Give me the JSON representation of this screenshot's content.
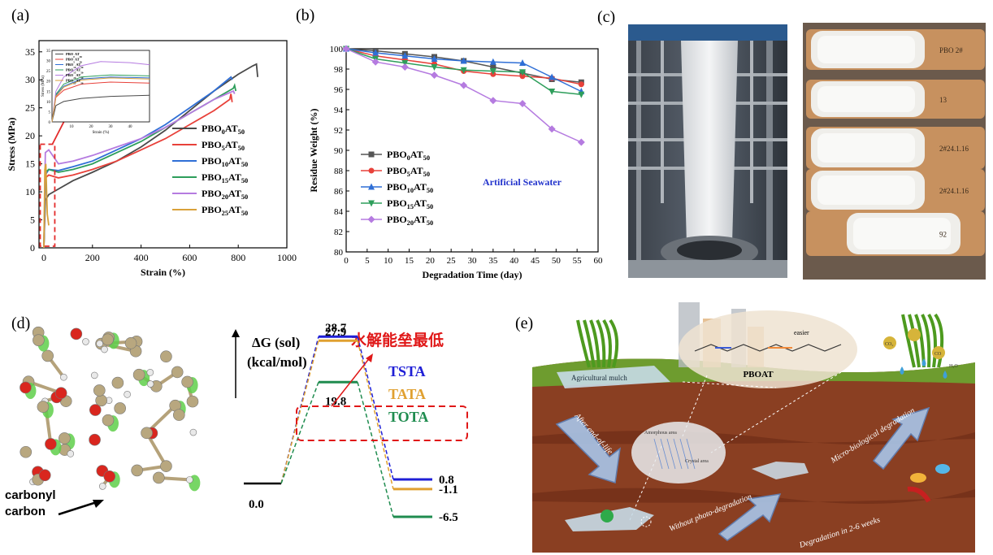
{
  "panels": {
    "a": {
      "label": "(a)"
    },
    "b": {
      "label": "(b)"
    },
    "c": {
      "label": "(c)"
    },
    "d": {
      "label": "(d)"
    },
    "e": {
      "label": "(e)"
    }
  },
  "chart_data": [
    {
      "id": "a",
      "type": "line",
      "xlabel": "Strain (%)",
      "ylabel": "Stress (MPa)",
      "xlim": [
        -20,
        1000
      ],
      "ylim": [
        0,
        37
      ],
      "xticks": [
        0,
        200,
        400,
        600,
        800,
        1000
      ],
      "yticks": [
        0,
        5,
        10,
        15,
        20,
        25,
        30,
        35
      ],
      "legend_position": "right",
      "series": [
        {
          "name": "PBO0AT50",
          "base": "PBO",
          "sub1": "0",
          "mid": "AT",
          "sub2": "50",
          "color": "#4a4a4a",
          "points": [
            [
              0,
              0
            ],
            [
              6,
              8.5
            ],
            [
              20,
              9.5
            ],
            [
              60,
              10.5
            ],
            [
              120,
              12
            ],
            [
              200,
              13.5
            ],
            [
              300,
              15.5
            ],
            [
              400,
              18
            ],
            [
              500,
              21
            ],
            [
              600,
              24.5
            ],
            [
              700,
              28
            ],
            [
              800,
              31
            ],
            [
              860,
              32.5
            ],
            [
              875,
              32.8
            ],
            [
              880,
              30.5
            ]
          ]
        },
        {
          "name": "PBO5AT50",
          "base": "PBO",
          "sub1": "5",
          "mid": "AT",
          "sub2": "50",
          "color": "#e8413a",
          "points": [
            [
              0,
              0
            ],
            [
              6,
              12.5
            ],
            [
              20,
              13
            ],
            [
              60,
              12.5
            ],
            [
              120,
              13
            ],
            [
              200,
              14
            ],
            [
              300,
              15.5
            ],
            [
              400,
              17.5
            ],
            [
              500,
              19.5
            ],
            [
              600,
              22
            ],
            [
              700,
              24.5
            ],
            [
              765,
              26.5
            ],
            [
              770,
              27.5
            ],
            [
              775,
              26
            ]
          ]
        },
        {
          "name": "PBO10AT50",
          "base": "PBO",
          "sub1": "10",
          "mid": "AT",
          "sub2": "50",
          "color": "#2f6fd6",
          "points": [
            [
              0,
              0
            ],
            [
              6,
              13
            ],
            [
              20,
              14
            ],
            [
              60,
              13.8
            ],
            [
              120,
              14.5
            ],
            [
              200,
              15.5
            ],
            [
              300,
              17.5
            ],
            [
              400,
              19.5
            ],
            [
              500,
              22
            ],
            [
              600,
              25
            ],
            [
              700,
              28
            ],
            [
              770,
              30.5
            ],
            [
              775,
              30
            ]
          ]
        },
        {
          "name": "PBO15AT50",
          "base": "PBO",
          "sub1": "15",
          "mid": "AT",
          "sub2": "50",
          "color": "#2e9e5b",
          "points": [
            [
              0,
              0
            ],
            [
              6,
              13.5
            ],
            [
              20,
              14
            ],
            [
              60,
              13.5
            ],
            [
              120,
              14
            ],
            [
              200,
              15
            ],
            [
              300,
              17
            ],
            [
              400,
              19
            ],
            [
              500,
              21.5
            ],
            [
              600,
              24
            ],
            [
              700,
              26.5
            ],
            [
              780,
              28.5
            ],
            [
              785,
              29
            ],
            [
              790,
              28
            ]
          ]
        },
        {
          "name": "PBO20AT50",
          "base": "PBO",
          "sub1": "20",
          "mid": "AT",
          "sub2": "50",
          "color": "#b57be0",
          "points": [
            [
              0,
              0
            ],
            [
              6,
              17
            ],
            [
              20,
              17.5
            ],
            [
              60,
              15
            ],
            [
              120,
              15.5
            ],
            [
              200,
              16.5
            ],
            [
              300,
              18
            ],
            [
              400,
              19.5
            ],
            [
              500,
              21.5
            ],
            [
              600,
              24
            ],
            [
              700,
              26.5
            ],
            [
              780,
              28
            ],
            [
              785,
              27.5
            ]
          ]
        },
        {
          "name": "PBO25AT50",
          "base": "PBO",
          "sub1": "25",
          "mid": "AT",
          "sub2": "50",
          "color": "#d9a13a",
          "points": [
            [
              0,
              0
            ],
            [
              4,
              14
            ],
            [
              8,
              15
            ],
            [
              14,
              6
            ],
            [
              20,
              4
            ]
          ]
        }
      ],
      "inset": {
        "xlabel": "Strain (%)",
        "ylabel": "Stress (MPa)",
        "xlim": [
          0,
          50
        ],
        "ylim": [
          0,
          35
        ],
        "xticks": [
          10,
          20,
          30,
          40
        ],
        "yticks": [
          0,
          5,
          10,
          15,
          20,
          25,
          30,
          35
        ],
        "series": [
          {
            "name": "PBO0AT50",
            "color": "#4a4a4a",
            "points": [
              [
                0,
                0
              ],
              [
                2,
                8
              ],
              [
                6,
                10
              ],
              [
                15,
                11.5
              ],
              [
                30,
                12.5
              ],
              [
                50,
                13
              ]
            ]
          },
          {
            "name": "PBO5AT50",
            "color": "#e8413a",
            "points": [
              [
                0,
                0
              ],
              [
                2,
                12
              ],
              [
                6,
                15.5
              ],
              [
                15,
                18.5
              ],
              [
                30,
                19.5
              ],
              [
                50,
                19
              ]
            ]
          },
          {
            "name": "PBO10AT50",
            "color": "#2f6fd6",
            "points": [
              [
                0,
                0
              ],
              [
                2,
                13
              ],
              [
                6,
                17.5
              ],
              [
                15,
                21
              ],
              [
                30,
                22
              ],
              [
                50,
                21.5
              ]
            ]
          },
          {
            "name": "PBO15AT50",
            "color": "#2e9e5b",
            "points": [
              [
                0,
                0
              ],
              [
                2,
                13.5
              ],
              [
                6,
                18.5
              ],
              [
                15,
                22
              ],
              [
                30,
                23
              ],
              [
                50,
                22.5
              ]
            ]
          },
          {
            "name": "PBO20AT50",
            "color": "#b57be0",
            "points": [
              [
                0,
                0
              ],
              [
                2,
                15
              ],
              [
                6,
                22
              ],
              [
                15,
                27.5
              ],
              [
                25,
                29.5
              ],
              [
                40,
                29
              ],
              [
                50,
                28
              ]
            ]
          },
          {
            "name": "PBO25AT50",
            "color": "#d9a13a",
            "points": [
              [
                0,
                0
              ],
              [
                2,
                12.5
              ],
              [
                6,
                17
              ],
              [
                15,
                20.5
              ],
              [
                30,
                21.5
              ],
              [
                50,
                21
              ]
            ]
          }
        ]
      }
    },
    {
      "id": "b",
      "type": "line",
      "xlabel": "Degradation Time (day)",
      "ylabel": "Residue Weight (%)",
      "xlim": [
        0,
        60
      ],
      "ylim": [
        80,
        100
      ],
      "xticks": [
        0,
        5,
        10,
        15,
        20,
        25,
        30,
        35,
        40,
        45,
        50,
        55,
        60
      ],
      "yticks": [
        80,
        82,
        84,
        86,
        88,
        90,
        92,
        94,
        96,
        98,
        100
      ],
      "annotation": "Artificial Seawater",
      "legend_position": "left",
      "x": [
        0,
        7,
        14,
        21,
        28,
        35,
        42,
        49,
        56
      ],
      "series": [
        {
          "name": "PBO0AT50",
          "base": "PBO",
          "sub1": "0",
          "mid": "AT",
          "sub2": "50",
          "color": "#555555",
          "marker": "square",
          "values": [
            100,
            99.8,
            99.5,
            99.2,
            98.8,
            98.2,
            97.6,
            97.0,
            96.7
          ]
        },
        {
          "name": "PBO5AT50",
          "base": "PBO",
          "sub1": "5",
          "mid": "AT",
          "sub2": "50",
          "color": "#e8413a",
          "marker": "circle",
          "values": [
            100,
            99.3,
            98.9,
            98.5,
            97.8,
            97.5,
            97.3,
            97.1,
            96.5
          ]
        },
        {
          "name": "PBO10AT50",
          "base": "PBO",
          "sub1": "10",
          "mid": "AT",
          "sub2": "50",
          "color": "#2f6fd6",
          "marker": "triangle",
          "values": [
            100,
            99.6,
            99.3,
            99.0,
            98.8,
            98.7,
            98.6,
            97.2,
            95.8
          ]
        },
        {
          "name": "PBO15AT50",
          "base": "PBO",
          "sub1": "15",
          "mid": "AT",
          "sub2": "50",
          "color": "#2e9e5b",
          "marker": "triangle-down",
          "values": [
            100,
            99.0,
            98.6,
            98.2,
            97.9,
            97.8,
            97.7,
            95.8,
            95.5
          ]
        },
        {
          "name": "PBO20AT50",
          "base": "PBO",
          "sub1": "20",
          "mid": "AT",
          "sub2": "50",
          "color": "#b57be0",
          "marker": "diamond",
          "values": [
            100,
            98.7,
            98.2,
            97.4,
            96.4,
            94.9,
            94.6,
            92.1,
            90.8
          ]
        }
      ]
    }
  ],
  "energy_diagram": {
    "axis_label_line1": "ΔG (sol)",
    "axis_label_line2": "(kcal/mol)",
    "annotation": "水解能垒最低",
    "start_value": "0.0",
    "levels": [
      {
        "name": "TSTA",
        "ts": "28.7",
        "final": "0.8",
        "color": "#1f1fd6"
      },
      {
        "name": "TATA",
        "ts": "27.9",
        "final": "-1.1",
        "color": "#e0a030"
      },
      {
        "name": "TOTA",
        "ts": "19.8",
        "final": "-6.5",
        "color": "#1f8c4f"
      }
    ]
  },
  "molecule": {
    "label_line1": "carbonyl",
    "label_line2": "carbon"
  },
  "scheme": {
    "mulch_label": "Agricultural mulch",
    "polymer_label": "PBOAT",
    "easier_label": "easier",
    "after_label": "After end-of-life",
    "amorphous_label": "Amorphous area",
    "crystal_label": "Crystal area",
    "micro_label": "Micro-biological degradation",
    "photo_label": "Without photo-degradation",
    "weeks_label": "Degradation in 2-6 weeks",
    "co2_label": "CO₂",
    "h2o_label": "H₂O",
    "co_label": "CO"
  },
  "photos": {
    "film_roll_notes": [
      "PBO 2#",
      "13",
      "2#24.1.16",
      "2#24.1.16",
      "92"
    ]
  }
}
